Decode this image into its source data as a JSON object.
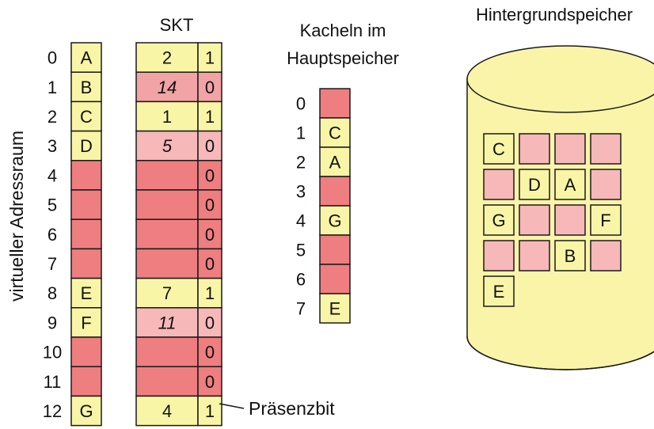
{
  "labels": {
    "skt_title": "SKT",
    "frames_title_line1": "Kacheln im",
    "frames_title_line2": "Hauptspeicher",
    "backing_title": "Hintergrundspeicher",
    "vas_axis": "virtueller Adressraum",
    "presence_bit": "Präsenzbit"
  },
  "colors": {
    "yellow": "#f9f5a6",
    "red": "#ee7e80",
    "pink": "#f7b8b9",
    "pink_alt": "#f2a3a5",
    "stroke": "#1a1a1a",
    "cylinder": "#faf4a9"
  },
  "virtual_pages": [
    {
      "index": "0",
      "content": "A",
      "frame": "2",
      "present": "1"
    },
    {
      "index": "1",
      "content": "B",
      "frame": "14",
      "present": "0"
    },
    {
      "index": "2",
      "content": "C",
      "frame": "1",
      "present": "1"
    },
    {
      "index": "3",
      "content": "D",
      "frame": "5",
      "present": "0"
    },
    {
      "index": "4",
      "content": "",
      "frame": "",
      "present": "0"
    },
    {
      "index": "5",
      "content": "",
      "frame": "",
      "present": "0"
    },
    {
      "index": "6",
      "content": "",
      "frame": "",
      "present": "0"
    },
    {
      "index": "7",
      "content": "",
      "frame": "",
      "present": "0"
    },
    {
      "index": "8",
      "content": "E",
      "frame": "7",
      "present": "1"
    },
    {
      "index": "9",
      "content": "F",
      "frame": "11",
      "present": "0"
    },
    {
      "index": "10",
      "content": "",
      "frame": "",
      "present": "0"
    },
    {
      "index": "11",
      "content": "",
      "frame": "",
      "present": "0"
    },
    {
      "index": "12",
      "content": "G",
      "frame": "4",
      "present": "1"
    }
  ],
  "main_memory_frames": [
    {
      "index": "0",
      "content": ""
    },
    {
      "index": "1",
      "content": "C"
    },
    {
      "index": "2",
      "content": "A"
    },
    {
      "index": "3",
      "content": ""
    },
    {
      "index": "4",
      "content": "G"
    },
    {
      "index": "5",
      "content": ""
    },
    {
      "index": "6",
      "content": ""
    },
    {
      "index": "7",
      "content": "E"
    }
  ],
  "backing_store_slots": [
    [
      "C",
      "",
      "",
      ""
    ],
    [
      "",
      "D",
      "A",
      ""
    ],
    [
      "G",
      "",
      "",
      "F"
    ],
    [
      "",
      "",
      "B",
      ""
    ],
    [
      "E"
    ]
  ]
}
